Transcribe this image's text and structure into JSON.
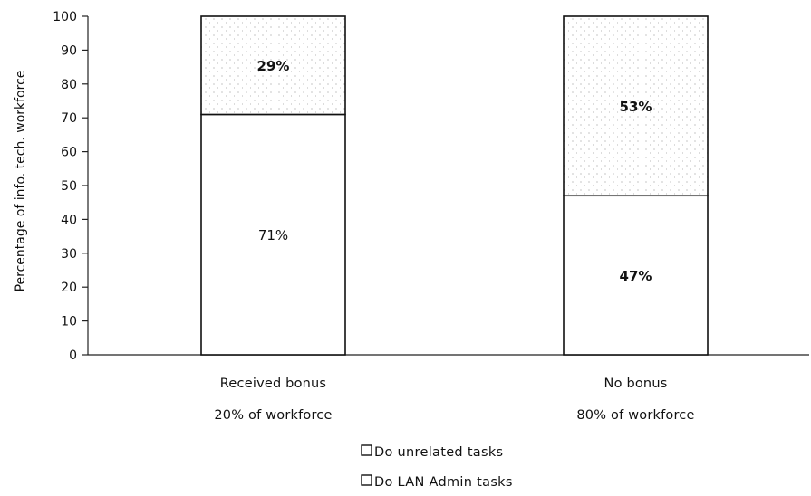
{
  "chart_data": {
    "type": "bar",
    "stacked": true,
    "categories": [
      "Received bonus",
      "No bonus"
    ],
    "category_sublabels": [
      "20% of workforce",
      "80% of workforce"
    ],
    "series": [
      {
        "name": "Do LAN Admin tasks",
        "values": [
          71,
          47
        ],
        "labels": [
          "71%",
          "47%"
        ],
        "color": "#ffffff",
        "pattern": "none"
      },
      {
        "name": "Do unrelated tasks",
        "values": [
          29,
          53
        ],
        "labels": [
          "29%",
          "53%"
        ],
        "color": "#ffffff",
        "pattern": "sparse-dots"
      }
    ],
    "title": "",
    "xlabel": "",
    "ylabel": "Percentage of info. tech. workforce",
    "ylim": [
      0,
      100
    ],
    "yticks": [
      0,
      10,
      20,
      30,
      40,
      50,
      60,
      70,
      80,
      90,
      100
    ],
    "grid": false,
    "legend_position": "bottom-center",
    "legend_order": [
      "Do unrelated tasks",
      "Do LAN Admin tasks"
    ]
  }
}
